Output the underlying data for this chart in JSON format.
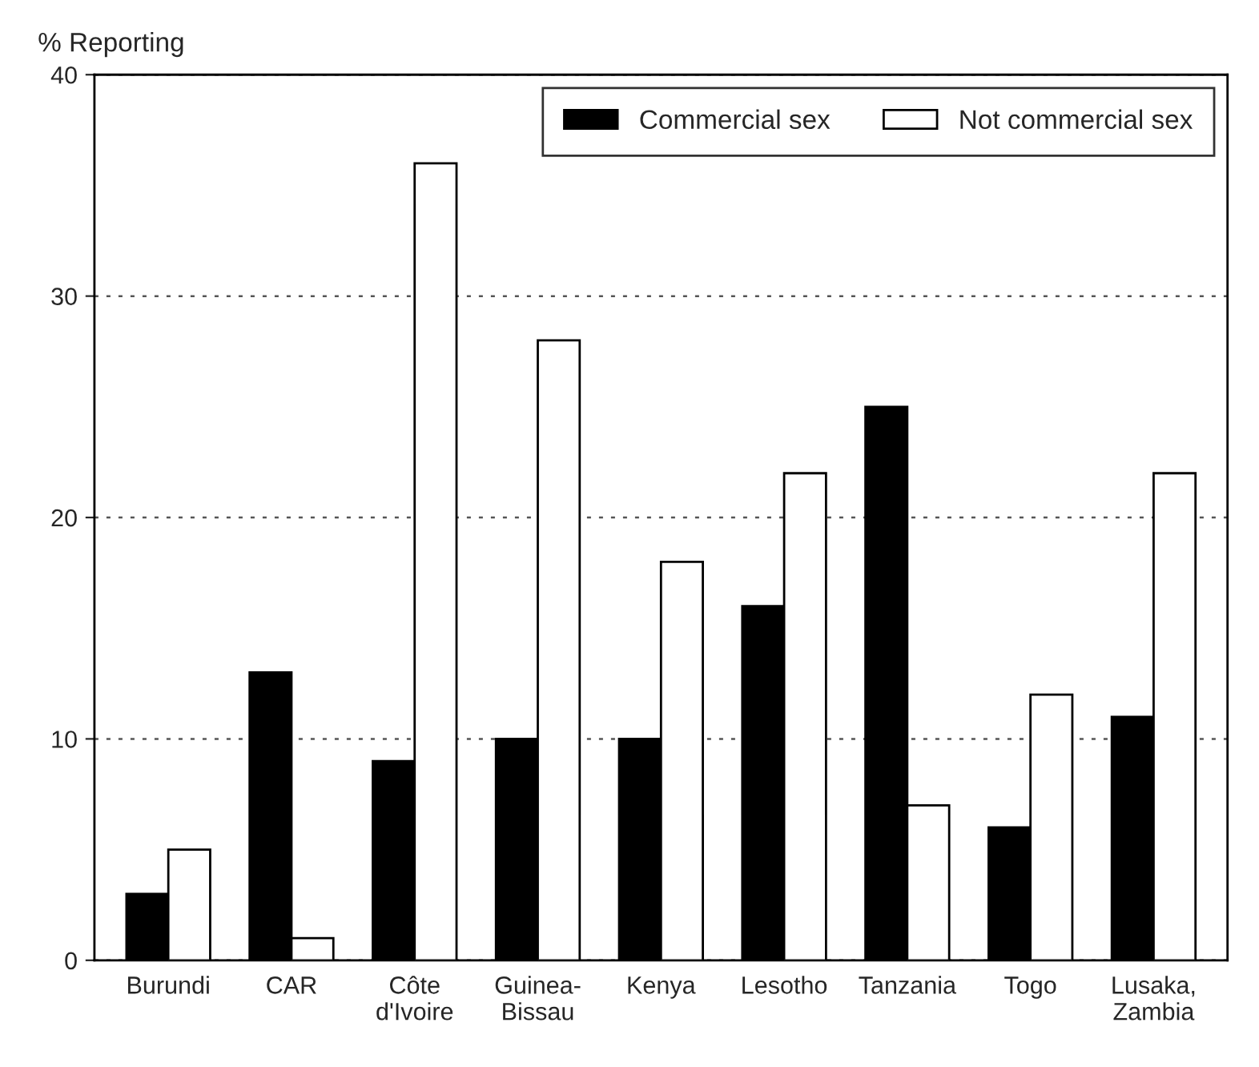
{
  "chart_data": {
    "type": "bar",
    "ylabel": "% Reporting",
    "categories": [
      "Burundi",
      "CAR",
      "Côte\nd'Ivoire",
      "Guinea-\nBissau",
      "Kenya",
      "Lesotho",
      "Tanzania",
      "Togo",
      "Lusaka,\nZambia"
    ],
    "series": [
      {
        "name": "Commercial sex",
        "color": "#000000",
        "values": [
          3,
          13,
          9,
          10,
          10,
          16,
          25,
          6,
          11
        ]
      },
      {
        "name": "Not commercial sex",
        "color": "#ffffff",
        "values": [
          5,
          1,
          36,
          28,
          18,
          22,
          7,
          12,
          22
        ]
      }
    ],
    "ylim": [
      0,
      40
    ],
    "yticks": [
      0,
      10,
      20,
      30,
      40
    ],
    "grid": "y",
    "legend": "top right"
  }
}
